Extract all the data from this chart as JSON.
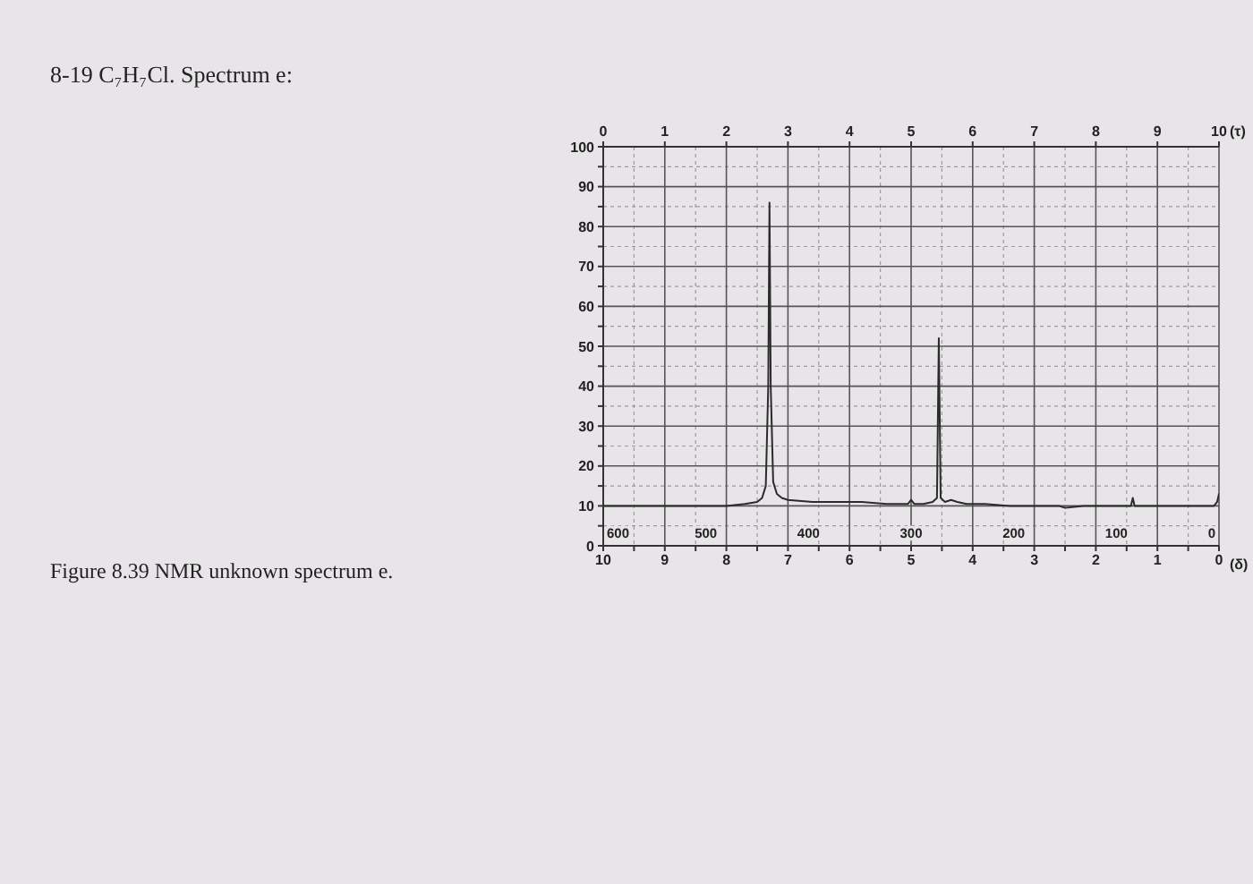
{
  "chart_data": {
    "type": "line",
    "title": "8-19 C₇H₇Cl. Spectrum e:",
    "xlabel": "(δ)",
    "x2label": "(τ)",
    "annotations": [
      "Figure 8.39 NMR unknown spectrum e.",
      "600",
      "500",
      "400",
      "300",
      "200",
      "100",
      "0"
    ],
    "x": [
      10,
      9.6,
      9.2,
      8.8,
      8.4,
      8,
      7.7,
      7.5,
      7.42,
      7.36,
      7.32,
      7.3,
      7.28,
      7.24,
      7.18,
      7.1,
      7,
      6.6,
      6.2,
      5.8,
      5.4,
      5.05,
      5,
      4.95,
      4.8,
      4.65,
      4.58,
      4.55,
      4.52,
      4.45,
      4.35,
      4.25,
      4.1,
      3.8,
      3.4,
      3,
      2.6,
      2.5,
      2.2,
      1.8,
      1.5,
      1.43,
      1.4,
      1.37,
      1.2,
      0.8,
      0.4,
      0.15,
      0.08,
      0.03,
      0
    ],
    "values": [
      10,
      10,
      10,
      10,
      10,
      10,
      10.5,
      11,
      12,
      15,
      40,
      86,
      40,
      16,
      13,
      12,
      11.5,
      11,
      11,
      11,
      10.5,
      10.5,
      11.5,
      10.5,
      10.5,
      11,
      12,
      52,
      12,
      11,
      11.5,
      11,
      10.5,
      10.5,
      10,
      10,
      10,
      9.5,
      10,
      10,
      10,
      10,
      12,
      10,
      10,
      10,
      10,
      10,
      10,
      11,
      13
    ],
    "color": "#2b2b2b",
    "xlim": [
      10,
      0
    ],
    "xticks": [
      10,
      {
        "value": 9.5,
        "label": null
      },
      9,
      {
        "value": 8.5,
        "label": null
      },
      8,
      {
        "value": 7.5,
        "label": null
      },
      7,
      {
        "value": 6.5,
        "label": null
      },
      6,
      {
        "value": 5.5,
        "label": null
      },
      5,
      {
        "value": 4.5,
        "label": null
      },
      4,
      {
        "value": 3.5,
        "label": null
      },
      3,
      {
        "value": 2.5,
        "label": null
      },
      2,
      {
        "value": 1.5,
        "label": null
      },
      1,
      {
        "value": 0.5,
        "label": null
      },
      0
    ],
    "x2lim": [
      0,
      10
    ],
    "x2ticks": [
      0,
      1,
      2,
      3,
      4,
      5,
      6,
      7,
      8,
      9,
      10
    ],
    "ylim": [
      0,
      100
    ],
    "yticks": [
      0,
      {
        "value": 5,
        "label": null
      },
      10,
      {
        "value": 15,
        "label": null
      },
      20,
      {
        "value": 25,
        "label": null
      },
      30,
      {
        "value": 35,
        "label": null
      },
      40,
      {
        "value": 45,
        "label": null
      },
      50,
      {
        "value": 55,
        "label": null
      },
      60,
      {
        "value": 65,
        "label": null
      },
      70,
      {
        "value": 75,
        "label": null
      },
      80,
      {
        "value": 85,
        "label": null
      },
      90,
      {
        "value": 95,
        "label": null
      },
      100
    ],
    "grid": true
  }
}
